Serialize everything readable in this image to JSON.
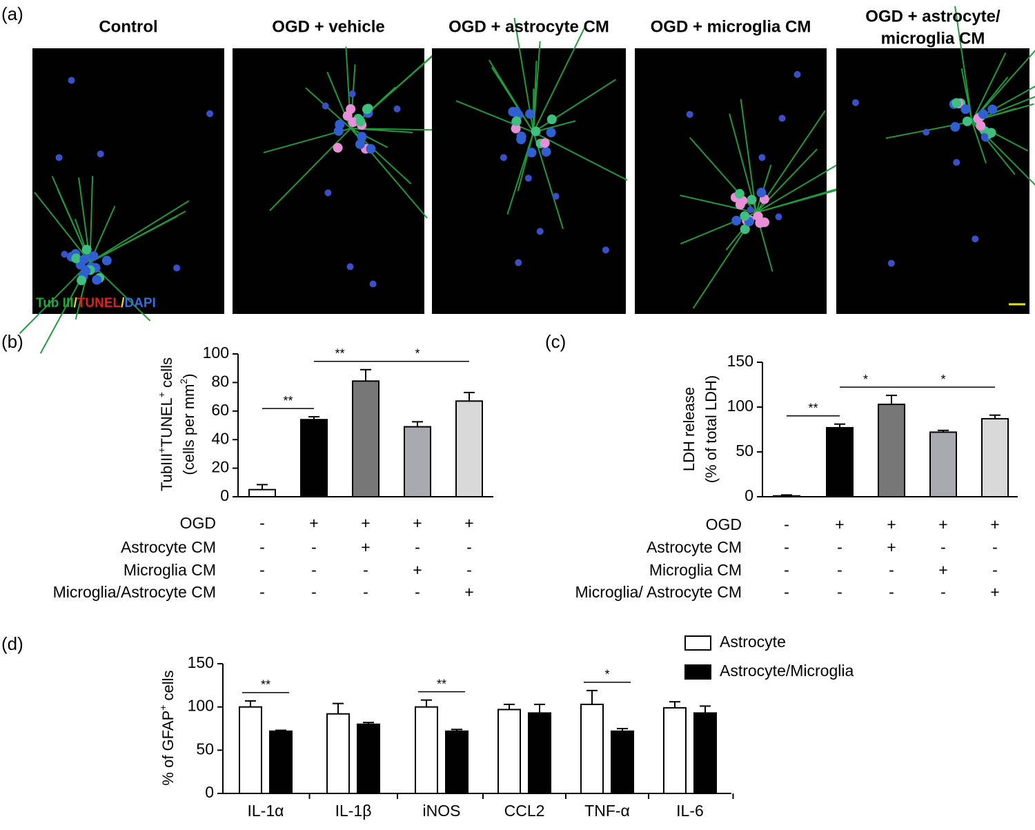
{
  "panel_labels": [
    "(a)",
    "(b)",
    "(c)",
    "(d)"
  ],
  "images": {
    "titles": [
      [
        "Control"
      ],
      [
        "OGD + vehicle"
      ],
      [
        "OGD + astrocyte CM"
      ],
      [
        "OGD + microglia CM"
      ],
      [
        "OGD + astrocyte/",
        "microglia CM"
      ]
    ],
    "stain_label": [
      "Tub III",
      "/",
      "TUNEL",
      "/",
      "DAPI"
    ]
  },
  "chart_data": [
    {
      "type": "bar",
      "y_label": [
        [
          {
            "text": "TubIII"
          },
          {
            "text": "+",
            "sup": true
          },
          {
            "text": "TUNEL"
          },
          {
            "text": "+",
            "sup": true
          },
          {
            "text": " cells"
          }
        ],
        [
          {
            "text": "(cells per mm"
          },
          {
            "text": "2",
            "sup": true
          },
          {
            "text": ")"
          }
        ]
      ],
      "values": [
        5,
        54,
        81,
        49,
        67
      ],
      "errors": [
        3.5,
        2,
        8,
        3.5,
        6
      ],
      "colors": [
        "#ffffff",
        "#000000",
        "#777777",
        "#a9a9b0",
        "#d8d8d8"
      ],
      "ylim": [
        0,
        100
      ],
      "yticks": [
        0,
        20,
        40,
        60,
        80,
        100
      ],
      "significance": [
        {
          "from": 0,
          "to": 1,
          "label": "**"
        },
        {
          "from": 1,
          "to": 2,
          "label": "**"
        },
        {
          "from": 2,
          "to": 4,
          "label": "*"
        }
      ],
      "conditions": [
        {
          "label": "OGD",
          "marks": [
            "-",
            "+",
            "+",
            "+",
            "+"
          ]
        },
        {
          "label": "Astrocyte CM",
          "marks": [
            "-",
            "-",
            "+",
            "-",
            "-"
          ]
        },
        {
          "label": "Microglia CM",
          "marks": [
            "-",
            "-",
            "-",
            "+",
            "-"
          ]
        },
        {
          "label": "Microglia/Astrocyte CM",
          "marks": [
            "-",
            "-",
            "-",
            "-",
            "+"
          ]
        }
      ]
    },
    {
      "type": "bar",
      "y_label": [
        [
          {
            "text": "LDH release"
          }
        ],
        [
          {
            "text": "(% of total LDH)"
          }
        ]
      ],
      "values": [
        1,
        77,
        103,
        72,
        87
      ],
      "errors": [
        1,
        4,
        10,
        2,
        4
      ],
      "colors": [
        "#ffffff",
        "#000000",
        "#777777",
        "#a9a9b0",
        "#d8d8d8"
      ],
      "ylim": [
        0,
        150
      ],
      "yticks": [
        0,
        50,
        100,
        150
      ],
      "significance": [
        {
          "from": 0,
          "to": 1,
          "label": "**"
        },
        {
          "from": 1,
          "to": 2,
          "label": "*"
        },
        {
          "from": 2,
          "to": 4,
          "label": "*"
        }
      ],
      "conditions": [
        {
          "label": "OGD",
          "marks": [
            "-",
            "+",
            "+",
            "+",
            "+"
          ]
        },
        {
          "label": "Astrocyte CM",
          "marks": [
            "-",
            "-",
            "+",
            "-",
            "-"
          ]
        },
        {
          "label": "Microglia CM",
          "marks": [
            "-",
            "-",
            "-",
            "+",
            "-"
          ]
        },
        {
          "label": "Microglia/ Astrocyte CM",
          "marks": [
            "-",
            "-",
            "-",
            "-",
            "+"
          ]
        }
      ]
    },
    {
      "type": "grouped_bar",
      "y_label": [
        [
          {
            "text": "% of GFAP"
          },
          {
            "text": "+",
            "sup": true
          },
          {
            "text": " cells"
          }
        ]
      ],
      "categories": [
        "IL-1α",
        "IL-1β",
        "iNOS",
        "CCL2",
        "TNF-α",
        "IL-6"
      ],
      "series": [
        {
          "name": "Astrocyte",
          "color": "#ffffff",
          "values": [
            100,
            92,
            100,
            97,
            103,
            99
          ],
          "errors": [
            7,
            12,
            8,
            6,
            16,
            7
          ]
        },
        {
          "name": "Astrocyte/Microglia",
          "color": "#000000",
          "values": [
            72,
            80,
            72,
            93,
            72,
            93
          ],
          "errors": [
            1,
            2,
            2,
            10,
            3,
            8
          ]
        }
      ],
      "ylim": [
        0,
        150
      ],
      "yticks": [
        0,
        50,
        100,
        150
      ],
      "significance": [
        {
          "category": 0,
          "label": "**"
        },
        {
          "category": 2,
          "label": "**"
        },
        {
          "category": 4,
          "label": "*"
        }
      ]
    }
  ]
}
